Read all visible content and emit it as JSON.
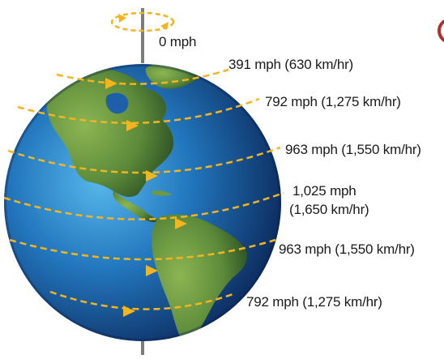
{
  "diagram": {
    "speed_labels": [
      {
        "id": "pole",
        "lines": [
          "0 mph"
        ]
      },
      {
        "id": "lat-60n",
        "lines": [
          "391 mph (630 km/hr)"
        ]
      },
      {
        "id": "lat-45n",
        "lines": [
          "792 mph (1,275 km/hr)"
        ]
      },
      {
        "id": "lat-20n",
        "lines": [
          "963 mph (1,550 km/hr)"
        ]
      },
      {
        "id": "equator",
        "lines": [
          "1,025 mph",
          "(1,650 km/hr)"
        ]
      },
      {
        "id": "lat-20s",
        "lines": [
          "963 mph (1,550 km/hr)"
        ]
      },
      {
        "id": "lat-45s",
        "lines": [
          "792 mph (1,275 km/hr)"
        ]
      }
    ],
    "colors": {
      "ocean_light": "#4aa8e0",
      "ocean_dark": "#0d2a5c",
      "land_light": "#7ea84a",
      "land_dark": "#2f5a28",
      "rotation_arrow": "#f2b520",
      "axis": "#7d7d7d",
      "text": "#1a1a1a",
      "corner_badge": "#b0302a"
    },
    "icons": [
      "rotation-arrow-icon",
      "direction-arrow-icon"
    ]
  }
}
